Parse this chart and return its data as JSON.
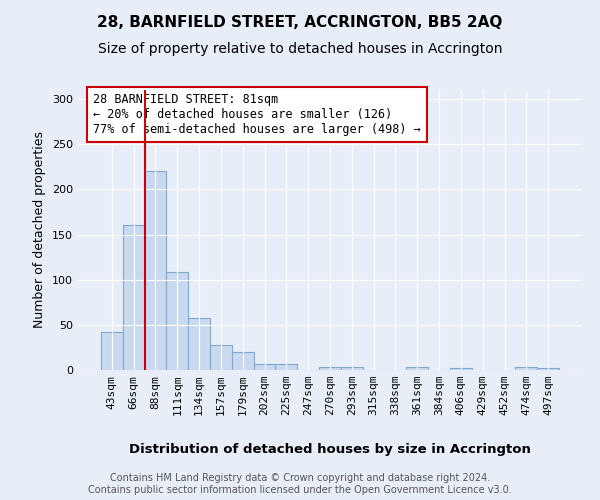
{
  "title": "28, BARNFIELD STREET, ACCRINGTON, BB5 2AQ",
  "subtitle": "Size of property relative to detached houses in Accrington",
  "xlabel": "Distribution of detached houses by size in Accrington",
  "ylabel": "Number of detached properties",
  "categories": [
    "43sqm",
    "66sqm",
    "88sqm",
    "111sqm",
    "134sqm",
    "157sqm",
    "179sqm",
    "202sqm",
    "225sqm",
    "247sqm",
    "270sqm",
    "293sqm",
    "315sqm",
    "338sqm",
    "361sqm",
    "384sqm",
    "406sqm",
    "429sqm",
    "452sqm",
    "474sqm",
    "497sqm"
  ],
  "values": [
    42,
    160,
    220,
    108,
    58,
    28,
    20,
    7,
    7,
    0,
    3,
    3,
    0,
    0,
    3,
    0,
    2,
    0,
    0,
    3,
    2
  ],
  "bar_color": "#c9d9f0",
  "bar_edge_color": "#7fa8d0",
  "vline_x": 1.5,
  "vline_color": "#cc0000",
  "annotation_text": "28 BARNFIELD STREET: 81sqm\n← 20% of detached houses are smaller (126)\n77% of semi-detached houses are larger (498) →",
  "annotation_box_color": "#ffffff",
  "annotation_box_edge": "#cc0000",
  "footer": "Contains HM Land Registry data © Crown copyright and database right 2024.\nContains public sector information licensed under the Open Government Licence v3.0.",
  "ylim": [
    0,
    310
  ],
  "yticks": [
    0,
    50,
    100,
    150,
    200,
    250,
    300
  ],
  "bg_color": "#e8eef8",
  "title_fontsize": 11,
  "subtitle_fontsize": 10,
  "xlabel_fontsize": 9.5,
  "ylabel_fontsize": 9,
  "tick_fontsize": 8,
  "footer_fontsize": 7,
  "annotation_fontsize": 8.5
}
